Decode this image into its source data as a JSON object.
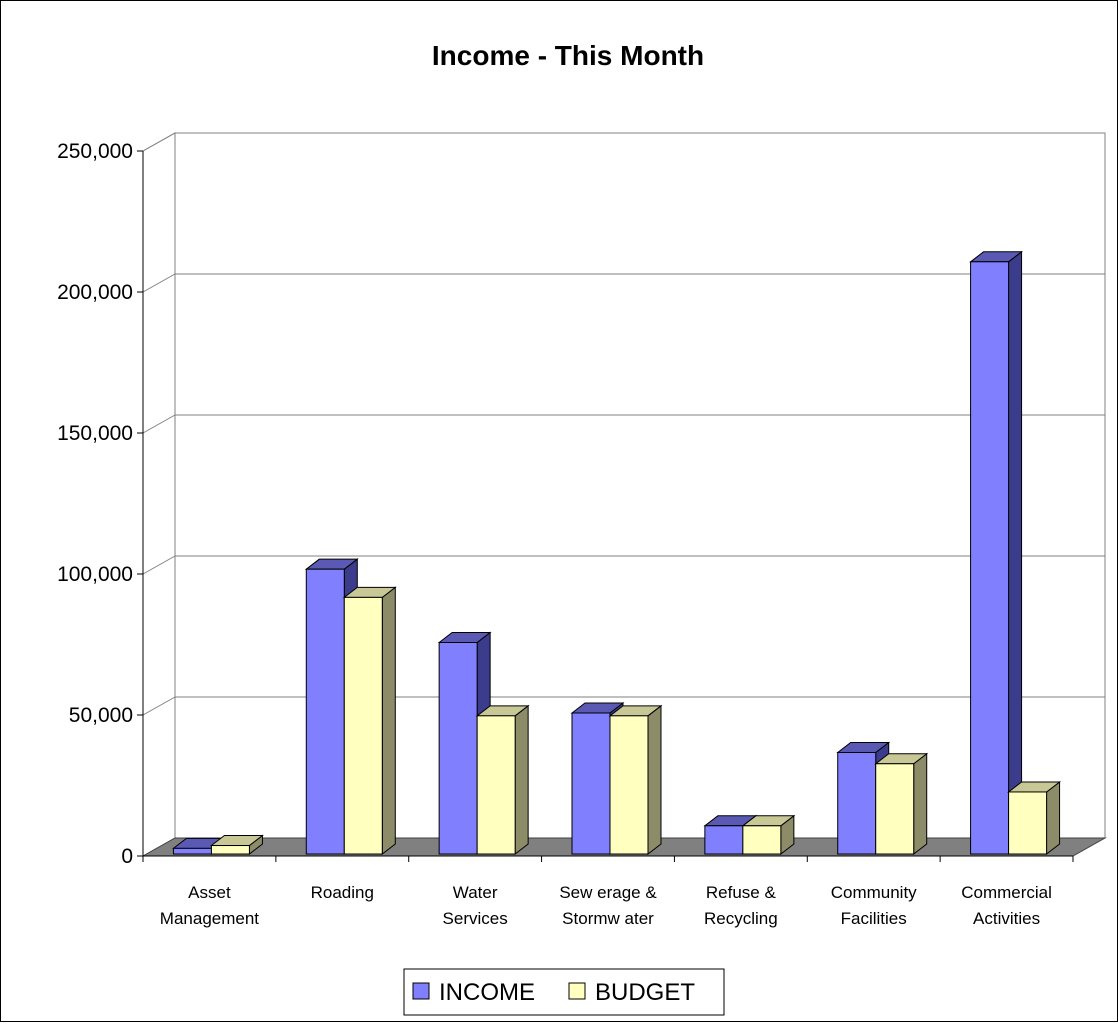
{
  "chart_data": {
    "type": "bar",
    "title": "Income - This Month",
    "categories": [
      [
        "Asset",
        "Management"
      ],
      [
        "Roading"
      ],
      [
        "Water",
        "Services"
      ],
      [
        "Sew erage &",
        "Stormw ater"
      ],
      [
        "Refuse &",
        "Recycling"
      ],
      [
        "Community",
        "Facilities"
      ],
      [
        "Commercial",
        "Activities"
      ]
    ],
    "series": [
      {
        "name": "INCOME",
        "values": [
          2000,
          101000,
          75000,
          50000,
          10000,
          36000,
          210000
        ]
      },
      {
        "name": "BUDGET",
        "values": [
          3000,
          91000,
          49000,
          49000,
          10000,
          32000,
          22000
        ]
      }
    ],
    "yticks": [
      "0",
      "50,000",
      "100,000",
      "150,000",
      "200,000",
      "250,000"
    ],
    "ylim": [
      0,
      250000
    ],
    "grid": true,
    "legend_position": "bottom",
    "colors": {
      "income_front": "#8080ff",
      "income_side": "#3c3c8c",
      "income_top": "#5a5ab4",
      "budget_front": "#ffffc0",
      "budget_side": "#8c8c68",
      "budget_top": "#c8c896",
      "floor": "#808080",
      "grid": "#808080"
    }
  }
}
